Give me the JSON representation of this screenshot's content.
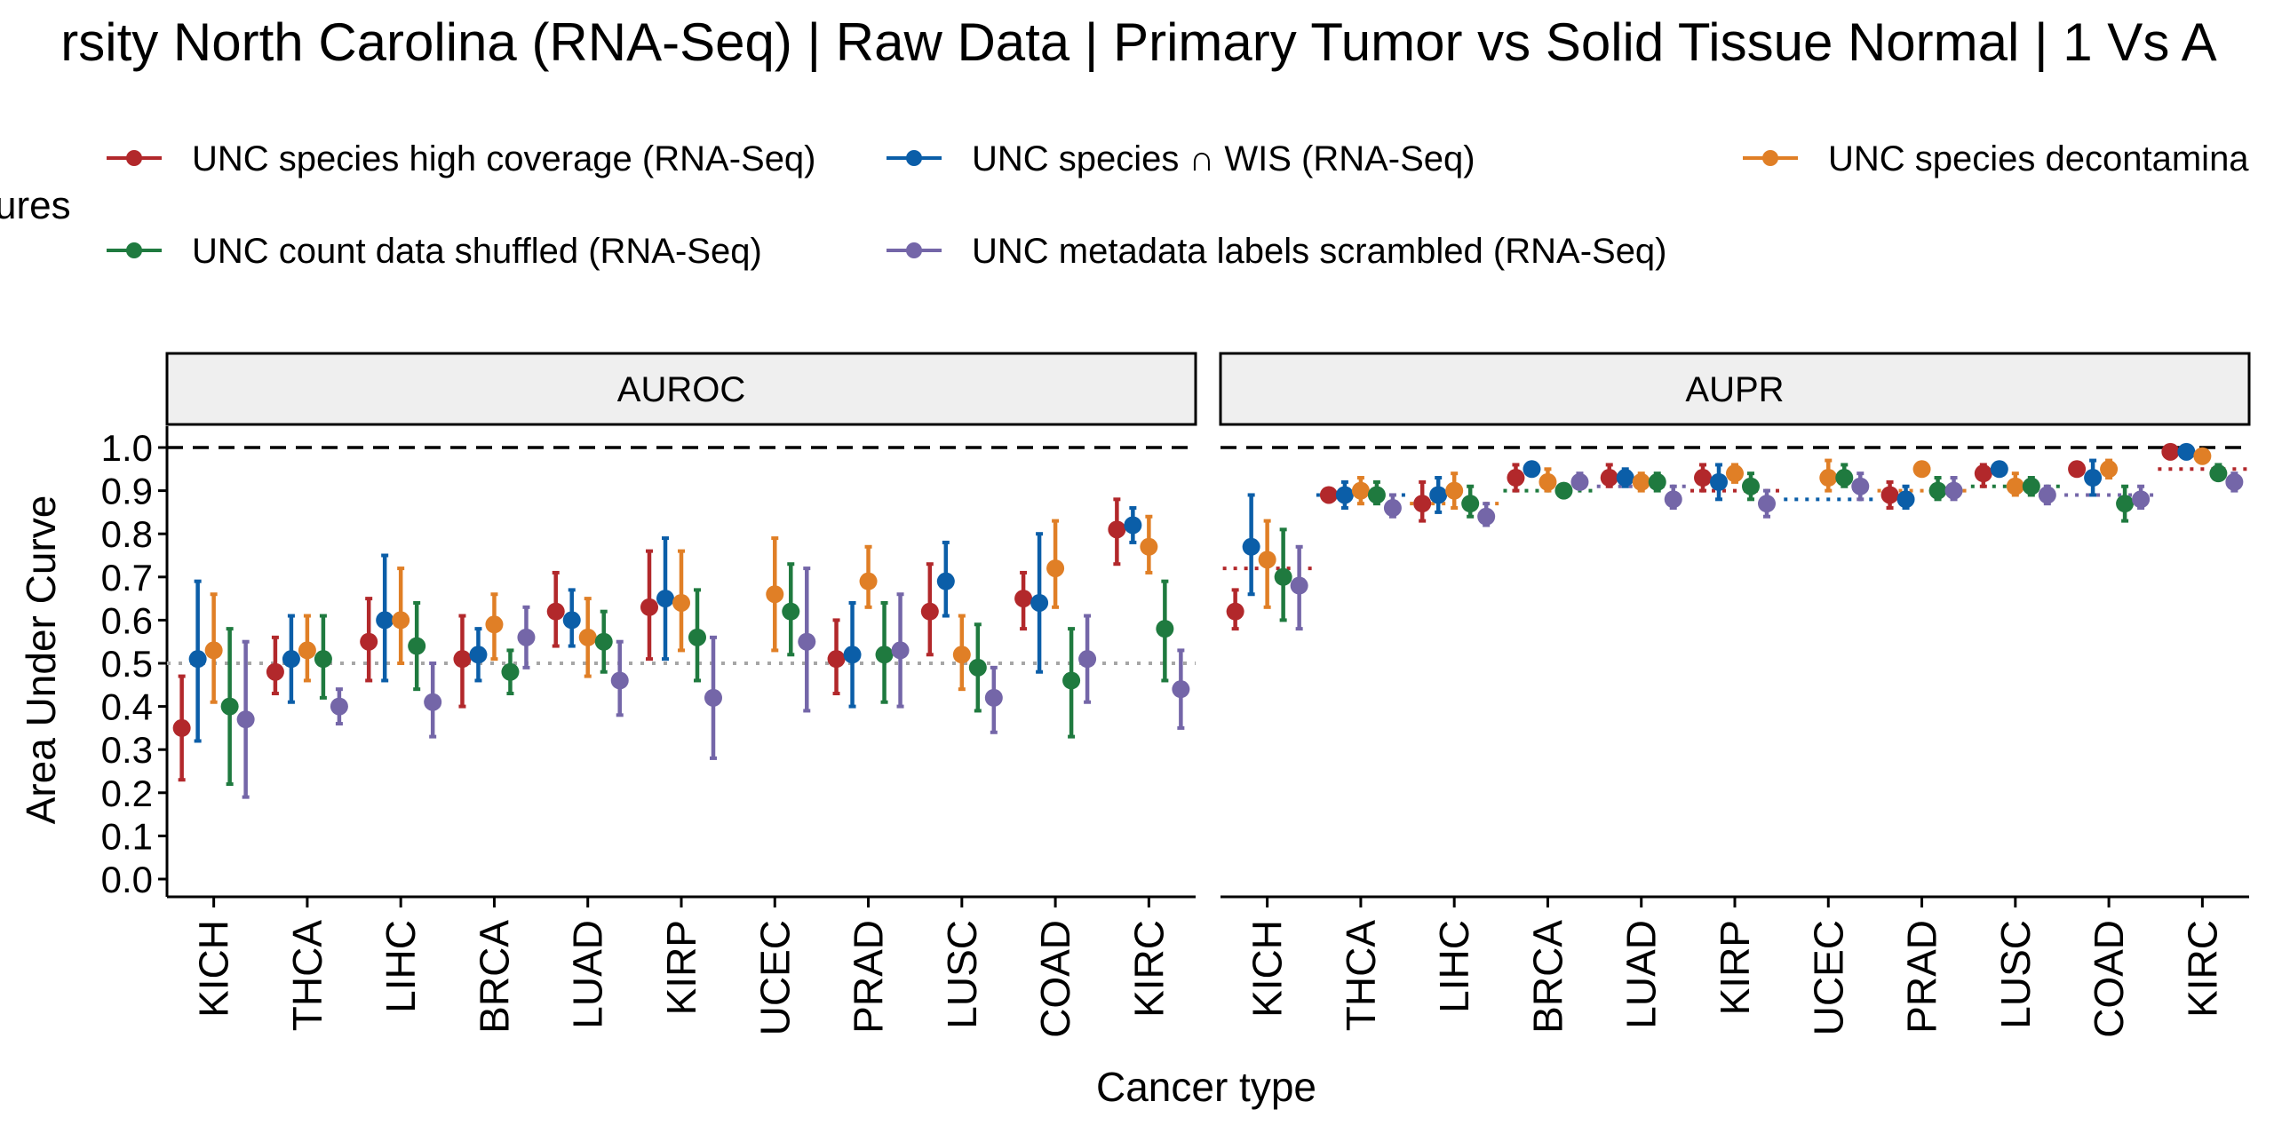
{
  "title": "rsity North Carolina (RNA-Seq) | Raw Data | Primary Tumor vs Solid Tissue Normal | 1 Vs A",
  "legend_heading": "ures",
  "colors": {
    "high_coverage": "#b2282b",
    "wis": "#0b5ea8",
    "decontaminated": "#e07f26",
    "shuffled": "#1f7a3f",
    "scrambled": "#7466a8",
    "panel_strip_bg": "#efefef"
  },
  "chart_data": {
    "type": "scatter",
    "title": "rsity North Carolina (RNA-Seq) | Raw Data | Primary Tumor vs Solid Tissue Normal | 1 Vs A",
    "xlabel": "Cancer type",
    "ylabel": "Area Under Curve",
    "ylim": [
      0,
      1
    ],
    "yticks": [
      "0.0",
      "0.1",
      "0.2",
      "0.3",
      "0.4",
      "0.5",
      "0.6",
      "0.7",
      "0.8",
      "0.9",
      "1.0"
    ],
    "categories": [
      "KICH",
      "THCA",
      "LIHC",
      "BRCA",
      "LUAD",
      "KIRP",
      "UCEC",
      "PRAD",
      "LUSC",
      "COAD",
      "KIRC"
    ],
    "legend_position": "top",
    "reference_lines": {
      "perfect": 1.0,
      "auroc_random": 0.5
    },
    "series": [
      {
        "key": "high_coverage",
        "name": "UNC species high coverage (RNA-Seq)",
        "color": "#b2282b"
      },
      {
        "key": "wis",
        "name": "UNC species ∩ WIS (RNA-Seq)",
        "color": "#0b5ea8"
      },
      {
        "key": "decontaminated",
        "name": "UNC species decontamina",
        "color": "#e07f26"
      },
      {
        "key": "shuffled",
        "name": "UNC count data shuffled (RNA-Seq)",
        "color": "#1f7a3f"
      },
      {
        "key": "scrambled",
        "name": "UNC metadata labels scrambled (RNA-Seq)",
        "color": "#7466a8"
      }
    ],
    "panels": [
      {
        "label": "AUROC",
        "values": {
          "high_coverage": [
            [
              0.35,
              0.23,
              0.47
            ],
            [
              0.48,
              0.43,
              0.56
            ],
            [
              0.55,
              0.46,
              0.65
            ],
            [
              0.51,
              0.4,
              0.61
            ],
            [
              0.62,
              0.54,
              0.71
            ],
            [
              0.63,
              0.51,
              0.76
            ],
            null,
            [
              0.51,
              0.43,
              0.6
            ],
            [
              0.62,
              0.52,
              0.73
            ],
            [
              0.65,
              0.58,
              0.71
            ],
            [
              0.81,
              0.73,
              0.88
            ]
          ],
          "wis": [
            [
              0.51,
              0.32,
              0.69
            ],
            [
              0.51,
              0.41,
              0.61
            ],
            [
              0.6,
              0.46,
              0.75
            ],
            [
              0.52,
              0.46,
              0.58
            ],
            [
              0.6,
              0.54,
              0.67
            ],
            [
              0.65,
              0.51,
              0.79
            ],
            null,
            [
              0.52,
              0.4,
              0.64
            ],
            [
              0.69,
              0.61,
              0.78
            ],
            [
              0.64,
              0.48,
              0.8
            ],
            [
              0.82,
              0.78,
              0.86
            ]
          ],
          "decontaminated": [
            [
              0.53,
              0.41,
              0.66
            ],
            [
              0.53,
              0.46,
              0.61
            ],
            [
              0.6,
              0.5,
              0.72
            ],
            [
              0.59,
              0.51,
              0.66
            ],
            [
              0.56,
              0.47,
              0.65
            ],
            [
              0.64,
              0.53,
              0.76
            ],
            [
              0.66,
              0.53,
              0.79
            ],
            [
              0.69,
              0.63,
              0.77
            ],
            [
              0.52,
              0.44,
              0.61
            ],
            [
              0.72,
              0.63,
              0.83
            ],
            [
              0.77,
              0.71,
              0.84
            ]
          ],
          "shuffled": [
            [
              0.4,
              0.22,
              0.58
            ],
            [
              0.51,
              0.42,
              0.61
            ],
            [
              0.54,
              0.44,
              0.64
            ],
            [
              0.48,
              0.43,
              0.53
            ],
            [
              0.55,
              0.48,
              0.62
            ],
            [
              0.56,
              0.46,
              0.67
            ],
            [
              0.62,
              0.52,
              0.73
            ],
            [
              0.52,
              0.41,
              0.64
            ],
            [
              0.49,
              0.39,
              0.59
            ],
            [
              0.46,
              0.33,
              0.58
            ],
            [
              0.58,
              0.46,
              0.69
            ]
          ],
          "scrambled": [
            [
              0.37,
              0.19,
              0.55
            ],
            [
              0.4,
              0.36,
              0.44
            ],
            [
              0.41,
              0.33,
              0.5
            ],
            [
              0.56,
              0.49,
              0.63
            ],
            [
              0.46,
              0.38,
              0.55
            ],
            [
              0.42,
              0.28,
              0.56
            ],
            [
              0.55,
              0.39,
              0.72
            ],
            [
              0.53,
              0.4,
              0.66
            ],
            [
              0.42,
              0.34,
              0.49
            ],
            [
              0.51,
              0.41,
              0.61
            ],
            [
              0.44,
              0.35,
              0.53
            ]
          ]
        },
        "baselines": [
          0.5,
          0.5,
          0.5,
          0.5,
          0.5,
          0.5,
          0.5,
          0.5,
          0.5,
          0.5,
          0.5
        ]
      },
      {
        "label": "AUPR",
        "values": {
          "high_coverage": [
            [
              0.62,
              0.58,
              0.67
            ],
            [
              0.89,
              0.88,
              0.9
            ],
            [
              0.87,
              0.83,
              0.92
            ],
            [
              0.93,
              0.9,
              0.96
            ],
            [
              0.93,
              0.91,
              0.96
            ],
            [
              0.93,
              0.9,
              0.96
            ],
            null,
            [
              0.89,
              0.86,
              0.92
            ],
            [
              0.94,
              0.91,
              0.96
            ],
            [
              0.95,
              0.94,
              0.96
            ],
            [
              0.99,
              0.99,
              0.99
            ]
          ],
          "wis": [
            [
              0.77,
              0.66,
              0.89
            ],
            [
              0.89,
              0.86,
              0.92
            ],
            [
              0.89,
              0.85,
              0.93
            ],
            [
              0.95,
              0.95,
              0.95
            ],
            [
              0.93,
              0.91,
              0.95
            ],
            [
              0.92,
              0.88,
              0.96
            ],
            null,
            [
              0.88,
              0.86,
              0.91
            ],
            [
              0.95,
              0.94,
              0.96
            ],
            [
              0.93,
              0.89,
              0.97
            ],
            [
              0.99,
              0.99,
              0.99
            ]
          ],
          "decontaminated": [
            [
              0.74,
              0.63,
              0.83
            ],
            [
              0.9,
              0.87,
              0.93
            ],
            [
              0.9,
              0.86,
              0.94
            ],
            [
              0.92,
              0.9,
              0.95
            ],
            [
              0.92,
              0.9,
              0.94
            ],
            [
              0.94,
              0.92,
              0.96
            ],
            [
              0.93,
              0.9,
              0.97
            ],
            [
              0.95,
              0.95,
              0.96
            ],
            [
              0.91,
              0.89,
              0.94
            ],
            [
              0.95,
              0.93,
              0.97
            ],
            [
              0.98,
              0.97,
              0.99
            ]
          ],
          "shuffled": [
            [
              0.7,
              0.6,
              0.81
            ],
            [
              0.89,
              0.87,
              0.92
            ],
            [
              0.87,
              0.84,
              0.91
            ],
            [
              0.9,
              0.89,
              0.91
            ],
            [
              0.92,
              0.9,
              0.94
            ],
            [
              0.91,
              0.88,
              0.94
            ],
            [
              0.93,
              0.91,
              0.96
            ],
            [
              0.9,
              0.88,
              0.93
            ],
            [
              0.91,
              0.89,
              0.93
            ],
            [
              0.87,
              0.83,
              0.91
            ],
            [
              0.94,
              0.93,
              0.96
            ]
          ],
          "scrambled": [
            [
              0.68,
              0.58,
              0.77
            ],
            [
              0.86,
              0.84,
              0.89
            ],
            [
              0.84,
              0.82,
              0.87
            ],
            [
              0.92,
              0.91,
              0.94
            ],
            [
              0.88,
              0.86,
              0.91
            ],
            [
              0.87,
              0.84,
              0.9
            ],
            [
              0.91,
              0.88,
              0.94
            ],
            [
              0.9,
              0.88,
              0.93
            ],
            [
              0.89,
              0.87,
              0.91
            ],
            [
              0.88,
              0.86,
              0.91
            ],
            [
              0.92,
              0.9,
              0.94
            ]
          ]
        },
        "baselines": [
          0.72,
          0.89,
          0.87,
          0.9,
          0.91,
          0.9,
          0.88,
          0.9,
          0.91,
          0.89,
          0.95
        ]
      }
    ]
  }
}
